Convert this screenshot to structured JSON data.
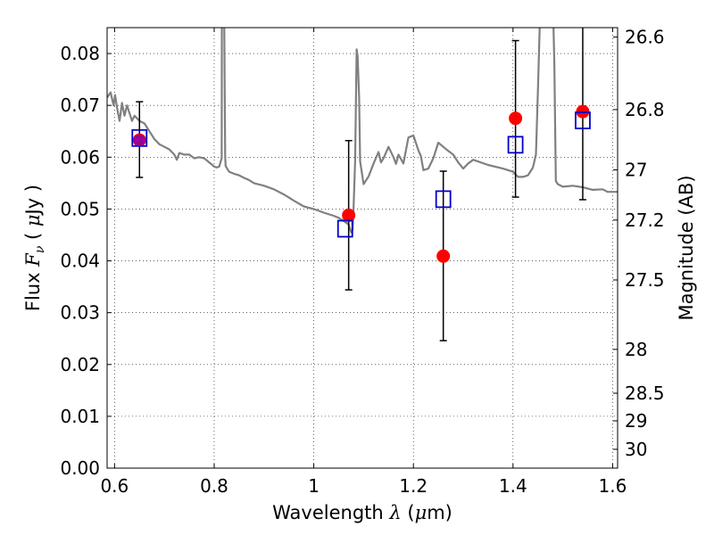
{
  "chart_data": {
    "type": "scatter",
    "xlabel": {
      "prefix": "Wavelength ",
      "symbol": "λ",
      "units": " (",
      "mu": "μ",
      "unit_tail": "m)"
    },
    "ylabel": {
      "prefix": "Flux ",
      "symbol": "F",
      "sub": "ν",
      "units": " ( ",
      "mu": "μ",
      "unit_tail": "Jy )"
    },
    "y2label": "Magnitude (AB)",
    "xlim": [
      0.585,
      1.61
    ],
    "ylim": [
      0.0,
      0.085
    ],
    "x_ticks": [
      0.6,
      0.8,
      1.0,
      1.2,
      1.4,
      1.6
    ],
    "x_tick_labels": [
      "0.6",
      "0.8",
      "1",
      "1.2",
      "1.4",
      "1.6"
    ],
    "y_ticks": [
      0.0,
      0.01,
      0.02,
      0.03,
      0.04,
      0.05,
      0.06,
      0.07,
      0.08
    ],
    "y_tick_labels": [
      "0.00",
      "0.01",
      "0.02",
      "0.03",
      "0.04",
      "0.05",
      "0.06",
      "0.07",
      "0.08"
    ],
    "mag_ticks": [
      26.6,
      26.8,
      27.0,
      27.2,
      27.5,
      28.0,
      28.5,
      29.0,
      30.0
    ],
    "mag_tick_labels": [
      "26.6",
      "26.8",
      "27",
      "27.2",
      "27.5",
      "28",
      "28.5",
      "29",
      "30"
    ],
    "grid": true,
    "colors": {
      "model": "#808080",
      "observed": "#ff0000",
      "model_band": "#0000cc",
      "errorbar": "#000000",
      "overlap": "#990099"
    },
    "series": [
      {
        "kind": "line",
        "x": [
          0.585,
          0.592,
          0.598,
          0.601,
          0.606,
          0.61,
          0.615,
          0.62,
          0.625,
          0.63,
          0.635,
          0.64,
          0.65,
          0.66,
          0.67,
          0.68,
          0.69,
          0.7,
          0.71,
          0.72,
          0.725,
          0.73,
          0.74,
          0.75,
          0.76,
          0.77,
          0.78,
          0.79,
          0.8,
          0.805,
          0.81,
          0.815,
          0.8155,
          0.82,
          0.822,
          0.823,
          0.826,
          0.83,
          0.84,
          0.85,
          0.86,
          0.87,
          0.88,
          0.9,
          0.92,
          0.94,
          0.96,
          0.98,
          1.0,
          1.02,
          1.04,
          1.05,
          1.06,
          1.07,
          1.075,
          1.078,
          1.08,
          1.083,
          1.086,
          1.088,
          1.091,
          1.093,
          1.1,
          1.11,
          1.12,
          1.13,
          1.135,
          1.14,
          1.15,
          1.16,
          1.165,
          1.17,
          1.18,
          1.19,
          1.2,
          1.21,
          1.215,
          1.22,
          1.23,
          1.24,
          1.25,
          1.26,
          1.27,
          1.28,
          1.29,
          1.3,
          1.31,
          1.32,
          1.35,
          1.38,
          1.4,
          1.41,
          1.42,
          1.43,
          1.44,
          1.446,
          1.45,
          1.455,
          1.46,
          1.462,
          1.47,
          1.48,
          1.483,
          1.486,
          1.49,
          1.5,
          1.52,
          1.54,
          1.56,
          1.58,
          1.59,
          1.61
        ],
        "y": [
          0.0715,
          0.0725,
          0.07,
          0.072,
          0.069,
          0.067,
          0.0705,
          0.068,
          0.07,
          0.0685,
          0.067,
          0.068,
          0.067,
          0.0665,
          0.065,
          0.0635,
          0.0625,
          0.062,
          0.0615,
          0.0605,
          0.0595,
          0.0608,
          0.0605,
          0.0605,
          0.0598,
          0.06,
          0.0598,
          0.059,
          0.0582,
          0.058,
          0.0582,
          0.0598,
          0.09,
          0.09,
          0.0601,
          0.0583,
          0.0578,
          0.0572,
          0.0568,
          0.0565,
          0.056,
          0.0556,
          0.055,
          0.0545,
          0.0538,
          0.0528,
          0.0516,
          0.0505,
          0.05,
          0.0493,
          0.0487,
          0.0483,
          0.0477,
          0.047,
          0.0455,
          0.046,
          0.0505,
          0.0592,
          0.0808,
          0.0795,
          0.0715,
          0.0592,
          0.0548,
          0.0563,
          0.0588,
          0.061,
          0.059,
          0.0598,
          0.062,
          0.06,
          0.0587,
          0.0605,
          0.0588,
          0.0638,
          0.0642,
          0.0613,
          0.0602,
          0.0575,
          0.0578,
          0.0598,
          0.0628,
          0.062,
          0.0612,
          0.0605,
          0.059,
          0.0578,
          0.0588,
          0.0595,
          0.0585,
          0.0578,
          0.0572,
          0.0562,
          0.0562,
          0.0565,
          0.058,
          0.0605,
          0.0728,
          0.09,
          0.09,
          0.09,
          0.09,
          0.09,
          0.0782,
          0.0554,
          0.0548,
          0.0543,
          0.0545,
          0.0542,
          0.0537,
          0.0538,
          0.0533,
          0.0533
        ]
      },
      {
        "kind": "errorbar",
        "x": [
          0.65,
          1.07,
          1.26,
          1.405,
          1.54
        ],
        "y": [
          0.0633,
          0.0488,
          0.0409,
          0.0675,
          0.0688
        ],
        "yerr_low": [
          0.0561,
          0.0344,
          0.0246,
          0.0523,
          0.0518
        ],
        "yerr_high": [
          0.0707,
          0.0632,
          0.0573,
          0.0825,
          0.0855
        ]
      },
      {
        "kind": "squares",
        "x": [
          0.65,
          1.063,
          1.26,
          1.405,
          1.54
        ],
        "y": [
          0.0637,
          0.0462,
          0.0519,
          0.0624,
          0.0671
        ]
      }
    ]
  }
}
